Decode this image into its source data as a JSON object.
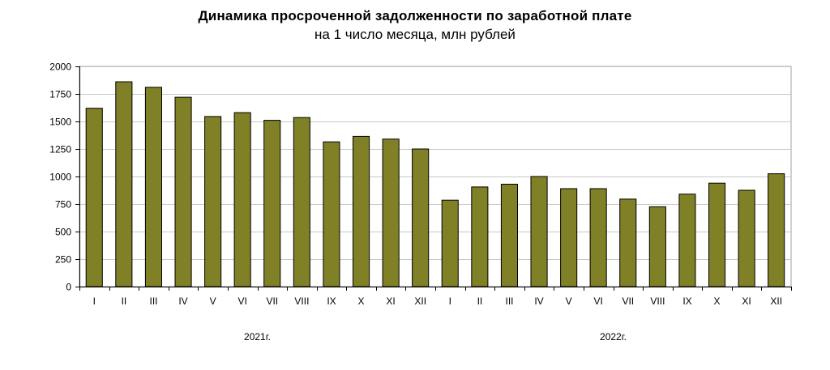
{
  "chart_data": {
    "type": "bar",
    "title": "Динамика просроченной задолженности по заработной плате",
    "subtitle": "на 1 число месяца, млн рублей",
    "categories": [
      "I",
      "II",
      "III",
      "IV",
      "V",
      "VI",
      "VII",
      "VIII",
      "IX",
      "X",
      "XI",
      "XII",
      "I",
      "II",
      "III",
      "IV",
      "V",
      "VI",
      "VII",
      "VIII",
      "IX",
      "X",
      "XI",
      "XII"
    ],
    "groups": [
      {
        "label": "2021г.",
        "count": 12
      },
      {
        "label": "2022г.",
        "count": 12
      }
    ],
    "values": [
      1620,
      1860,
      1810,
      1720,
      1545,
      1580,
      1510,
      1535,
      1315,
      1365,
      1340,
      1250,
      785,
      905,
      930,
      1000,
      890,
      890,
      795,
      725,
      840,
      940,
      875,
      1025
    ],
    "yticks": [
      0,
      250,
      500,
      750,
      1000,
      1250,
      1500,
      1750,
      2000
    ],
    "ylim": [
      0,
      2000
    ],
    "grid": true,
    "bar_color": "#808026",
    "bar_outline": "#000000",
    "grid_color": "#c8c8c8"
  }
}
